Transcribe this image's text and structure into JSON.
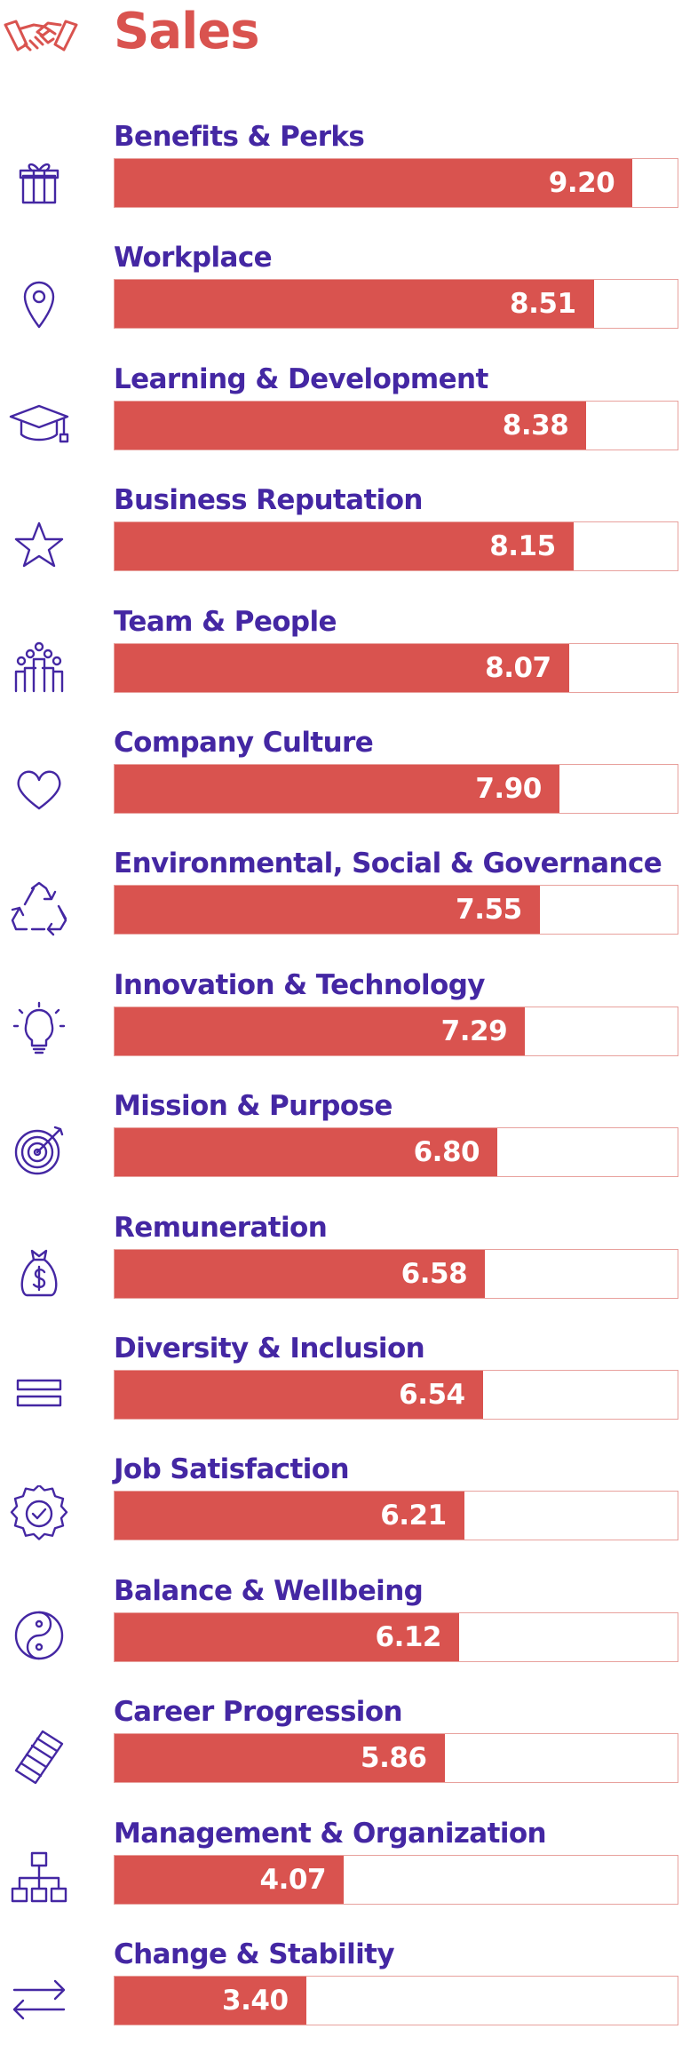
{
  "header": {
    "title": "Sales",
    "icon": "handshake-icon"
  },
  "colors": {
    "bar": "#d9534f",
    "label": "#4427a3",
    "title": "#d9534f",
    "icon": "#4427a3"
  },
  "chart_data": {
    "type": "bar",
    "orientation": "horizontal",
    "title": "Sales",
    "categories": [
      "Benefits & Perks",
      "Workplace",
      "Learning & Development",
      "Business Reputation",
      "Team & People",
      "Company Culture",
      "Environmental, Social & Governance",
      "Innovation & Technology",
      "Mission & Purpose",
      "Remuneration",
      "Diversity & Inclusion",
      "Job Satisfaction",
      "Balance & Wellbeing",
      "Career Progression",
      "Management & Organization",
      "Change & Stability"
    ],
    "values": [
      "9.20",
      "8.51",
      "8.38",
      "8.15",
      "8.07",
      "7.90",
      "7.55",
      "7.29",
      "6.80",
      "6.58",
      "6.54",
      "6.21",
      "6.12",
      "5.86",
      "4.07",
      "3.40"
    ],
    "icons": [
      "gift-icon",
      "location-pin-icon",
      "graduation-cap-icon",
      "star-icon",
      "team-icon",
      "heart-icon",
      "recycle-icon",
      "lightbulb-icon",
      "target-icon",
      "money-bag-icon",
      "equals-icon",
      "badge-check-icon",
      "yin-yang-icon",
      "ladder-icon",
      "org-chart-icon",
      "arrows-exchange-icon"
    ],
    "xlim": [
      0,
      10
    ]
  }
}
